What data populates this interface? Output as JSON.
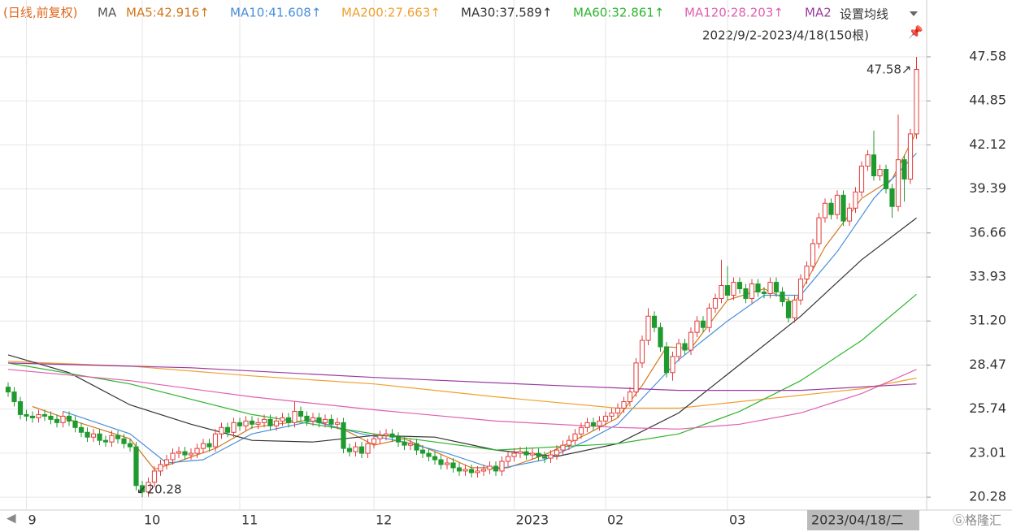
{
  "chart_data": {
    "type": "candlestick",
    "subtitle": "(日线,前复权)",
    "subtitle_color": "#e0661a",
    "ma_label": "MA",
    "settings_button": "设置均线",
    "range_label": "2022/9/2-2023/4/18(150根)",
    "cursor_date": "2023/04/18/二",
    "up_color": "#e23b3b",
    "down_color": "#1f9a2e",
    "ylim": [
      19.63,
      50.7
    ],
    "yticks": [
      47.58,
      44.85,
      42.12,
      39.39,
      36.66,
      33.93,
      {
        "value": 31.2,
        "label": "31.20"
      },
      28.47,
      25.74,
      23.01,
      20.28
    ],
    "categories": [
      null,
      null,
      null,
      "9",
      null,
      null,
      null,
      null,
      null,
      null,
      null,
      null,
      null,
      null,
      null,
      null,
      null,
      null,
      null,
      null,
      null,
      null,
      "10",
      null,
      null,
      null,
      null,
      null,
      null,
      null,
      null,
      null,
      null,
      null,
      null,
      null,
      null,
      null,
      "11",
      null,
      null,
      null,
      null,
      null,
      null,
      null,
      null,
      null,
      null,
      null,
      null,
      null,
      null,
      null,
      null,
      null,
      null,
      null,
      null,
      null,
      "12",
      null,
      null,
      null,
      null,
      null,
      null,
      null,
      null,
      null,
      null,
      null,
      null,
      null,
      null,
      null,
      null,
      null,
      null,
      null,
      null,
      null,
      null,
      "2023",
      null,
      null,
      null,
      null,
      null,
      null,
      null,
      null,
      null,
      null,
      null,
      null,
      null,
      null,
      "02",
      null,
      null,
      null,
      null,
      null,
      null,
      null,
      null,
      null,
      null,
      null,
      null,
      null,
      null,
      null,
      null,
      null,
      null,
      null,
      "03",
      null,
      null,
      null,
      null,
      null,
      null,
      null,
      null,
      null,
      null,
      null,
      null,
      null,
      null,
      null,
      null,
      null,
      null,
      null,
      null,
      null,
      null,
      null,
      null,
      null,
      null,
      null,
      null,
      null,
      null,
      null
    ],
    "open": [
      27.1,
      26.8,
      26.2,
      25.4,
      25.3,
      25.2,
      25.4,
      25.3,
      25.1,
      24.9,
      25.3,
      25.0,
      24.6,
      24.3,
      24.0,
      24.2,
      23.8,
      23.7,
      24.1,
      23.9,
      23.6,
      23.4,
      21.0,
      20.6,
      21.2,
      21.9,
      22.3,
      22.6,
      23.0,
      23.1,
      22.9,
      23.0,
      23.3,
      23.6,
      23.4,
      24.2,
      24.6,
      24.3,
      24.9,
      24.7,
      25.0,
      24.8,
      24.9,
      25.1,
      24.7,
      25.0,
      25.2,
      24.9,
      25.6,
      25.3,
      25.0,
      25.2,
      24.9,
      25.1,
      24.8,
      24.9,
      23.3,
      23.1,
      23.4,
      23.0,
      23.6,
      23.9,
      24.1,
      24.2,
      24.0,
      23.7,
      23.5,
      23.6,
      23.2,
      23.0,
      22.8,
      22.6,
      22.3,
      22.4,
      22.1,
      21.9,
      22.0,
      21.8,
      21.9,
      22.0,
      22.2,
      21.9,
      22.5,
      22.8,
      23.0,
      23.1,
      22.9,
      23.0,
      22.8,
      22.7,
      22.9,
      23.2,
      23.5,
      23.8,
      24.2,
      24.6,
      24.9,
      24.7,
      25.0,
      25.3,
      25.5,
      25.8,
      26.2,
      26.8,
      28.6,
      30.0,
      31.5,
      30.8,
      29.6,
      28.0,
      29.0,
      29.8,
      29.4,
      30.5,
      31.2,
      30.8,
      32.0,
      32.6,
      33.4,
      32.8,
      33.6,
      33.2,
      32.6,
      33.5,
      33.0,
      32.9,
      33.6,
      33.0,
      32.4,
      31.4,
      32.5,
      33.8,
      34.6,
      36.0,
      37.6,
      38.5,
      37.8,
      39.0,
      37.4,
      38.2,
      39.2,
      40.8,
      41.5,
      40.2,
      40.6,
      39.4,
      38.3,
      41.2,
      40.0,
      42.8
    ],
    "high": [
      27.4,
      27.1,
      26.5,
      25.7,
      25.6,
      25.7,
      25.7,
      25.6,
      25.4,
      25.6,
      25.6,
      25.3,
      24.9,
      24.6,
      24.5,
      24.5,
      24.1,
      24.4,
      24.4,
      24.2,
      23.9,
      23.7,
      21.3,
      21.5,
      22.2,
      22.6,
      22.9,
      23.3,
      23.4,
      23.4,
      23.3,
      23.6,
      23.9,
      23.9,
      24.5,
      24.9,
      24.9,
      25.2,
      25.2,
      25.3,
      25.3,
      25.2,
      25.4,
      25.4,
      25.3,
      25.5,
      25.5,
      26.2,
      25.9,
      25.6,
      25.5,
      25.5,
      25.4,
      25.4,
      25.2,
      25.2,
      23.6,
      23.7,
      23.7,
      23.9,
      24.2,
      24.4,
      24.5,
      24.5,
      24.3,
      24.0,
      23.9,
      23.9,
      23.5,
      23.3,
      23.1,
      22.9,
      22.7,
      22.7,
      22.4,
      22.3,
      22.3,
      22.2,
      22.3,
      22.5,
      22.5,
      22.8,
      23.1,
      23.3,
      23.4,
      23.4,
      23.3,
      23.3,
      23.1,
      23.2,
      23.5,
      23.8,
      24.1,
      24.5,
      24.9,
      25.2,
      25.2,
      25.3,
      25.6,
      25.8,
      26.1,
      26.5,
      27.1,
      28.9,
      30.3,
      32.0,
      31.8,
      31.1,
      29.9,
      29.3,
      30.1,
      30.1,
      30.8,
      31.5,
      31.5,
      32.3,
      32.9,
      35.0,
      34.6,
      33.9,
      33.9,
      33.5,
      33.8,
      33.8,
      33.3,
      33.9,
      33.9,
      33.3,
      32.7,
      32.8,
      34.1,
      34.9,
      36.3,
      37.9,
      38.8,
      38.8,
      39.3,
      39.3,
      38.5,
      39.5,
      41.1,
      41.8,
      43.0,
      40.9,
      40.9,
      39.7,
      44.0,
      41.5,
      43.1,
      47.58
    ],
    "low": [
      26.5,
      25.9,
      25.1,
      25.0,
      24.9,
      24.9,
      25.0,
      24.8,
      24.6,
      24.6,
      24.7,
      24.3,
      24.0,
      23.7,
      23.7,
      23.5,
      23.4,
      23.4,
      23.6,
      23.3,
      23.1,
      20.7,
      20.28,
      20.3,
      20.9,
      21.6,
      22.0,
      22.3,
      22.7,
      22.6,
      22.6,
      22.7,
      23.0,
      23.1,
      23.1,
      23.9,
      24.0,
      24.0,
      24.4,
      24.4,
      24.5,
      24.5,
      24.6,
      24.4,
      24.4,
      24.7,
      24.6,
      24.6,
      25.0,
      24.7,
      24.7,
      24.6,
      24.6,
      24.5,
      24.5,
      23.0,
      22.8,
      22.8,
      22.7,
      22.7,
      23.3,
      23.6,
      23.8,
      23.7,
      23.4,
      23.2,
      23.2,
      22.9,
      22.7,
      22.5,
      22.3,
      22.0,
      22.0,
      21.8,
      21.6,
      21.6,
      21.5,
      21.5,
      21.6,
      21.7,
      21.6,
      21.6,
      22.2,
      22.5,
      22.7,
      22.6,
      22.6,
      22.5,
      22.4,
      22.4,
      22.6,
      22.9,
      23.2,
      23.5,
      23.9,
      24.3,
      24.4,
      24.4,
      24.7,
      25.0,
      25.2,
      25.5,
      25.9,
      26.5,
      28.3,
      29.7,
      30.5,
      29.3,
      27.7,
      27.5,
      28.7,
      29.1,
      29.1,
      30.2,
      30.5,
      30.5,
      31.7,
      32.3,
      32.5,
      32.5,
      32.9,
      32.3,
      32.3,
      32.7,
      32.6,
      32.6,
      32.7,
      32.1,
      31.1,
      31.1,
      32.2,
      33.5,
      34.3,
      35.7,
      37.3,
      37.5,
      37.5,
      37.1,
      37.1,
      37.9,
      38.9,
      40.5,
      39.9,
      39.9,
      39.1,
      37.6,
      38.0,
      38.6,
      39.7,
      42.5
    ],
    "close": [
      26.8,
      26.2,
      25.4,
      25.3,
      25.2,
      25.4,
      25.3,
      25.1,
      24.9,
      25.3,
      25.0,
      24.6,
      24.3,
      24.0,
      24.2,
      23.8,
      23.7,
      24.1,
      23.9,
      23.6,
      23.4,
      21.0,
      20.6,
      21.2,
      21.9,
      22.3,
      22.6,
      23.0,
      23.1,
      22.9,
      23.0,
      23.3,
      23.6,
      23.4,
      24.2,
      24.6,
      24.3,
      24.9,
      24.7,
      25.0,
      24.8,
      24.9,
      25.1,
      24.7,
      25.0,
      25.2,
      24.9,
      25.6,
      25.3,
      25.0,
      25.2,
      24.9,
      25.1,
      24.8,
      24.9,
      23.3,
      23.1,
      23.4,
      23.0,
      23.6,
      23.9,
      24.1,
      24.2,
      24.0,
      23.7,
      23.5,
      23.6,
      23.2,
      23.0,
      22.8,
      22.6,
      22.3,
      22.4,
      22.1,
      21.9,
      22.0,
      21.8,
      21.9,
      22.0,
      22.2,
      21.9,
      22.5,
      22.8,
      23.0,
      23.1,
      22.9,
      23.0,
      22.8,
      22.7,
      22.9,
      23.2,
      23.5,
      23.8,
      24.2,
      24.6,
      24.9,
      24.7,
      25.0,
      25.3,
      25.5,
      25.8,
      26.2,
      26.8,
      28.6,
      30.0,
      31.5,
      30.8,
      29.6,
      28.0,
      29.0,
      29.8,
      29.4,
      30.5,
      31.2,
      30.8,
      32.0,
      32.6,
      33.4,
      32.8,
      33.6,
      33.2,
      32.6,
      33.5,
      33.0,
      32.9,
      33.6,
      33.0,
      32.4,
      31.4,
      32.5,
      33.8,
      34.6,
      36.0,
      37.6,
      38.5,
      37.8,
      39.0,
      37.4,
      38.2,
      39.2,
      40.8,
      41.5,
      40.2,
      40.6,
      39.4,
      38.3,
      41.2,
      40.0,
      42.8,
      46.8
    ],
    "ma_lines": [
      {
        "legend_label": "MA5:42.916↑",
        "color": "#d2781e",
        "x": [
          4,
          10,
          20,
          24,
          28,
          34,
          40,
          50,
          56,
          60,
          65,
          70,
          76,
          82,
          88,
          95,
          100,
          104,
          108,
          112,
          118,
          124,
          129,
          134,
          140,
          145,
          149
        ],
        "values": [
          25.9,
          25.1,
          23.9,
          22.0,
          22.5,
          23.3,
          24.6,
          25.1,
          24.3,
          23.5,
          23.9,
          23.1,
          22.1,
          22.1,
          22.9,
          24.2,
          25.2,
          27.2,
          29.6,
          29.5,
          32.5,
          33.2,
          32.3,
          35.8,
          38.8,
          40.0,
          42.916
        ]
      },
      {
        "legend_label": "MA10:41.608↑",
        "color": "#4a8fd8",
        "x": [
          9,
          20,
          26,
          32,
          40,
          50,
          58,
          65,
          72,
          80,
          88,
          95,
          100,
          105,
          110,
          118,
          124,
          130,
          136,
          142,
          149
        ],
        "values": [
          25.6,
          24.2,
          22.4,
          22.6,
          24.2,
          25.0,
          24.2,
          23.7,
          23.0,
          22.0,
          22.6,
          23.8,
          24.8,
          26.8,
          28.8,
          31.2,
          32.8,
          32.8,
          35.5,
          38.8,
          41.608
        ]
      },
      {
        "legend_label": "MA200:27.663↑",
        "color": "#f0a030",
        "x": [
          0,
          20,
          40,
          60,
          80,
          100,
          110,
          120,
          130,
          140,
          149
        ],
        "values": [
          28.7,
          28.4,
          27.8,
          27.3,
          26.5,
          25.8,
          25.8,
          26.2,
          26.6,
          27.0,
          27.663
        ]
      },
      {
        "legend_label": "MA30:37.589↑",
        "color": "#333333",
        "x": [
          0,
          10,
          20,
          30,
          40,
          50,
          60,
          70,
          80,
          90,
          100,
          110,
          120,
          130,
          140,
          149
        ],
        "values": [
          29.1,
          28.0,
          26.0,
          24.8,
          23.8,
          23.7,
          24.1,
          24.0,
          23.2,
          22.8,
          23.6,
          25.5,
          28.5,
          31.5,
          35.0,
          37.589
        ]
      },
      {
        "legend_label": "MA60:32.861↑",
        "color": "#2db52d",
        "x": [
          0,
          20,
          40,
          60,
          80,
          100,
          110,
          120,
          130,
          140,
          149
        ],
        "values": [
          28.6,
          27.3,
          25.4,
          24.2,
          23.2,
          23.6,
          24.2,
          25.6,
          27.5,
          30.0,
          32.861
        ]
      },
      {
        "legend_label": "MA120:28.203↑",
        "color": "#e060b0",
        "x": [
          0,
          20,
          40,
          60,
          80,
          100,
          110,
          120,
          130,
          140,
          149
        ],
        "values": [
          28.2,
          27.5,
          26.5,
          25.7,
          25.0,
          24.6,
          24.5,
          24.8,
          25.5,
          26.7,
          28.203
        ]
      },
      {
        "legend_label": "MA2",
        "color": "#9a3aa0",
        "x": [
          0,
          30,
          60,
          90,
          110,
          130,
          149
        ],
        "values": [
          28.6,
          28.3,
          27.7,
          27.2,
          26.9,
          26.9,
          27.3
        ]
      }
    ],
    "annotations": [
      "47.58↗",
      "↙20.28"
    ]
  }
}
